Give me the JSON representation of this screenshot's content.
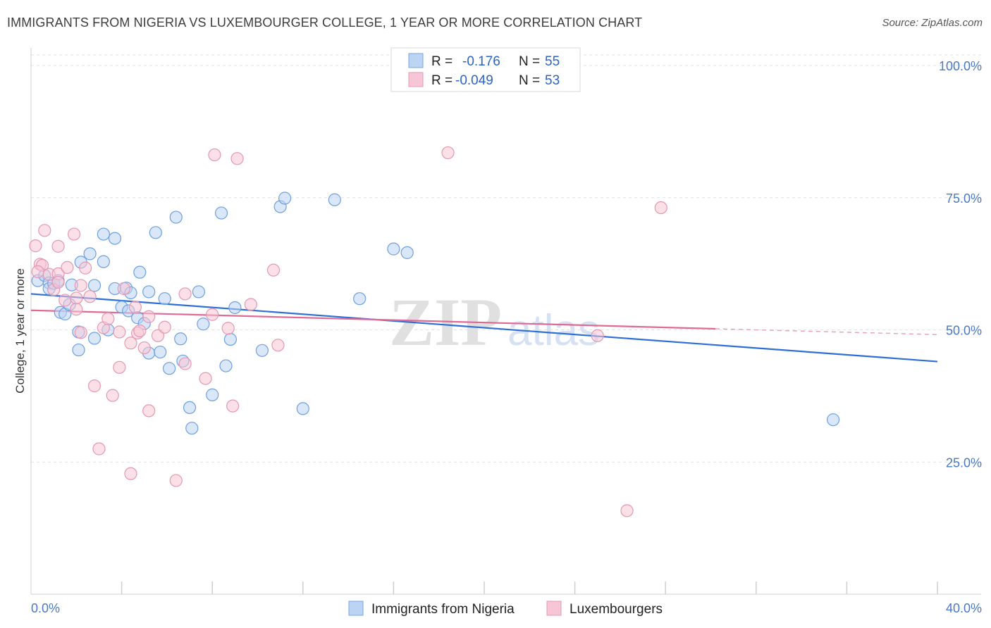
{
  "title": "IMMIGRANTS FROM NIGERIA VS LUXEMBOURGER COLLEGE, 1 YEAR OR MORE CORRELATION CHART",
  "source": "Source: ZipAtlas.com",
  "watermark": {
    "zip": "ZIP",
    "atlas": "atlas"
  },
  "colors": {
    "blue": "#4a86d8",
    "blue_fill": "#bcd4f4",
    "pink": "#e06a96",
    "pink_fill": "#f7c6d6",
    "tick_text": "#4a78c4"
  },
  "chart_data": {
    "type": "scatter",
    "xlabel": "",
    "ylabel": "College, 1 year or more",
    "x_tick_labels": [
      "0.0%",
      "40.0%"
    ],
    "y_tick_labels": [
      "100.0%",
      "75.0%",
      "50.0%",
      "25.0%"
    ],
    "xlim": [
      0,
      40
    ],
    "ylim": [
      0,
      102
    ],
    "grid": true,
    "legend_placement": "top-center",
    "legend": [
      {
        "r_label": "R =",
        "r_value": "-0.176",
        "n_label": "N =",
        "n_value": "55"
      },
      {
        "r_label": "R =",
        "r_value": "-0.049",
        "n_label": "N =",
        "n_value": "53"
      }
    ],
    "series": [
      {
        "name": "Immigrants from Nigeria",
        "color": "#4a86d8",
        "trend": {
          "x": [
            0,
            40
          ],
          "y": [
            56.8,
            44.0
          ]
        },
        "points": [
          [
            0.3,
            59.3
          ],
          [
            0.6,
            60.3
          ],
          [
            0.8,
            58.9
          ],
          [
            0.8,
            57.8
          ],
          [
            1.0,
            58.8
          ],
          [
            1.2,
            59.3
          ],
          [
            1.3,
            53.3
          ],
          [
            1.5,
            53.0
          ],
          [
            1.8,
            58.5
          ],
          [
            1.7,
            54.8
          ],
          [
            2.1,
            49.6
          ],
          [
            2.1,
            46.2
          ],
          [
            2.2,
            62.8
          ],
          [
            2.6,
            64.4
          ],
          [
            2.8,
            48.4
          ],
          [
            2.8,
            58.4
          ],
          [
            3.2,
            68.1
          ],
          [
            3.2,
            62.9
          ],
          [
            3.4,
            50.0
          ],
          [
            3.7,
            67.3
          ],
          [
            3.7,
            57.8
          ],
          [
            4.0,
            54.3
          ],
          [
            4.2,
            57.9
          ],
          [
            4.3,
            53.6
          ],
          [
            4.4,
            57.0
          ],
          [
            4.7,
            52.3
          ],
          [
            4.8,
            60.9
          ],
          [
            5.0,
            51.2
          ],
          [
            5.2,
            57.2
          ],
          [
            5.2,
            45.6
          ],
          [
            5.5,
            68.4
          ],
          [
            5.7,
            45.8
          ],
          [
            5.9,
            55.9
          ],
          [
            6.1,
            42.7
          ],
          [
            6.4,
            71.3
          ],
          [
            6.6,
            48.3
          ],
          [
            6.7,
            44.1
          ],
          [
            7.0,
            35.3
          ],
          [
            7.1,
            31.4
          ],
          [
            7.4,
            57.2
          ],
          [
            7.6,
            51.1
          ],
          [
            8.0,
            37.7
          ],
          [
            8.4,
            72.1
          ],
          [
            8.6,
            43.2
          ],
          [
            8.8,
            48.2
          ],
          [
            9.0,
            54.2
          ],
          [
            10.2,
            46.1
          ],
          [
            11.0,
            73.3
          ],
          [
            11.2,
            74.9
          ],
          [
            12.0,
            35.1
          ],
          [
            13.4,
            74.6
          ],
          [
            14.5,
            55.9
          ],
          [
            16.0,
            65.3
          ],
          [
            16.6,
            64.6
          ],
          [
            35.4,
            33.0
          ]
        ]
      },
      {
        "name": "Luxembourgers",
        "color": "#e06a96",
        "trend": {
          "x": [
            0,
            30.2
          ],
          "y": [
            53.7,
            50.2
          ]
        },
        "trend_dashed": {
          "x": [
            30.2,
            40
          ],
          "y": [
            50.2,
            49.1
          ]
        },
        "points": [
          [
            0.2,
            65.9
          ],
          [
            0.4,
            62.4
          ],
          [
            0.5,
            62.2
          ],
          [
            0.6,
            68.8
          ],
          [
            0.8,
            60.5
          ],
          [
            1.0,
            57.6
          ],
          [
            1.2,
            60.6
          ],
          [
            1.2,
            59.0
          ],
          [
            1.2,
            65.8
          ],
          [
            1.5,
            55.6
          ],
          [
            1.6,
            61.8
          ],
          [
            1.9,
            68.1
          ],
          [
            2.0,
            56.0
          ],
          [
            2.0,
            53.9
          ],
          [
            2.2,
            49.5
          ],
          [
            2.2,
            58.4
          ],
          [
            2.4,
            61.7
          ],
          [
            2.6,
            56.3
          ],
          [
            2.8,
            39.4
          ],
          [
            3.0,
            27.5
          ],
          [
            3.2,
            50.4
          ],
          [
            3.4,
            52.1
          ],
          [
            3.6,
            37.6
          ],
          [
            3.9,
            49.6
          ],
          [
            3.9,
            42.9
          ],
          [
            4.1,
            57.8
          ],
          [
            4.4,
            47.5
          ],
          [
            4.4,
            22.8
          ],
          [
            4.6,
            54.3
          ],
          [
            4.7,
            49.4
          ],
          [
            4.8,
            49.8
          ],
          [
            5.0,
            46.6
          ],
          [
            5.2,
            34.7
          ],
          [
            5.2,
            52.5
          ],
          [
            5.6,
            48.9
          ],
          [
            5.9,
            50.5
          ],
          [
            6.4,
            21.5
          ],
          [
            6.8,
            56.8
          ],
          [
            6.8,
            43.6
          ],
          [
            7.7,
            40.8
          ],
          [
            8.0,
            52.9
          ],
          [
            8.1,
            83.1
          ],
          [
            8.7,
            50.3
          ],
          [
            8.9,
            35.6
          ],
          [
            9.1,
            82.4
          ],
          [
            9.7,
            54.8
          ],
          [
            10.7,
            61.3
          ],
          [
            10.9,
            47.1
          ],
          [
            18.4,
            83.5
          ],
          [
            25.0,
            48.9
          ],
          [
            26.3,
            15.8
          ],
          [
            27.8,
            73.1
          ],
          [
            0.3,
            61.0
          ]
        ]
      }
    ]
  }
}
